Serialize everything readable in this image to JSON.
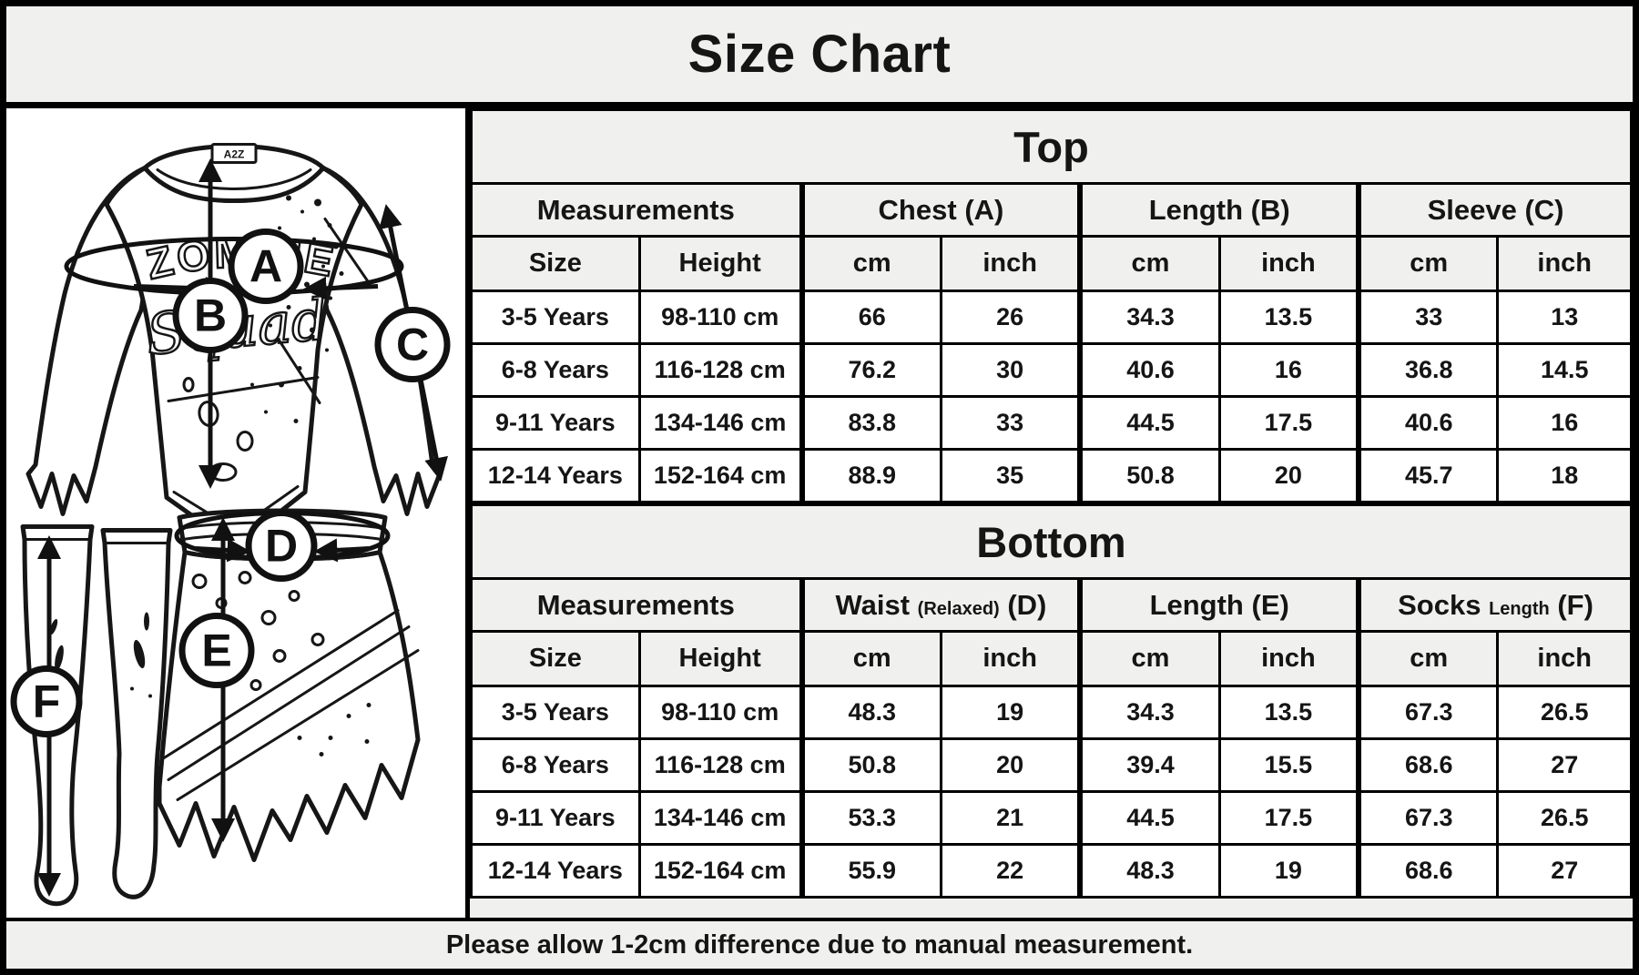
{
  "title": "Size Chart",
  "footer_note": "Please allow 1-2cm difference due to manual measurement.",
  "colors": {
    "page_bg": "#f0f0ee",
    "cell_bg": "#ffffff",
    "ink": "#111111"
  },
  "illustration": {
    "shirt_text_arc": "ZOMBIE",
    "shirt_text_script": "Squad",
    "collar_tag": "A2Z",
    "markers": {
      "chest": "A",
      "top_length": "B",
      "sleeve": "C",
      "waist": "D",
      "skirt_length": "E",
      "socks_length": "F"
    }
  },
  "tables": [
    {
      "section": "Top",
      "groups": [
        {
          "main": "Measurements",
          "small": "",
          "suffix": ""
        },
        {
          "main": "Chest",
          "small": "",
          "suffix": "(A)"
        },
        {
          "main": "Length",
          "small": "",
          "suffix": "(B)"
        },
        {
          "main": "Sleeve",
          "small": "",
          "suffix": "(C)"
        }
      ],
      "sub_headers": [
        "Size",
        "Height",
        "cm",
        "inch",
        "cm",
        "inch",
        "cm",
        "inch"
      ],
      "rows": [
        [
          "3-5 Years",
          "98-110 cm",
          "66",
          "26",
          "34.3",
          "13.5",
          "33",
          "13"
        ],
        [
          "6-8 Years",
          "116-128 cm",
          "76.2",
          "30",
          "40.6",
          "16",
          "36.8",
          "14.5"
        ],
        [
          "9-11 Years",
          "134-146 cm",
          "83.8",
          "33",
          "44.5",
          "17.5",
          "40.6",
          "16"
        ],
        [
          "12-14 Years",
          "152-164 cm",
          "88.9",
          "35",
          "50.8",
          "20",
          "45.7",
          "18"
        ]
      ]
    },
    {
      "section": "Bottom",
      "groups": [
        {
          "main": "Measurements",
          "small": "",
          "suffix": ""
        },
        {
          "main": "Waist",
          "small": "(Relaxed)",
          "suffix": "(D)"
        },
        {
          "main": "Length",
          "small": "",
          "suffix": "(E)"
        },
        {
          "main": "Socks",
          "small": "Length",
          "suffix": "(F)"
        }
      ],
      "sub_headers": [
        "Size",
        "Height",
        "cm",
        "inch",
        "cm",
        "inch",
        "cm",
        "inch"
      ],
      "rows": [
        [
          "3-5 Years",
          "98-110 cm",
          "48.3",
          "19",
          "34.3",
          "13.5",
          "67.3",
          "26.5"
        ],
        [
          "6-8 Years",
          "116-128 cm",
          "50.8",
          "20",
          "39.4",
          "15.5",
          "68.6",
          "27"
        ],
        [
          "9-11 Years",
          "134-146 cm",
          "53.3",
          "21",
          "44.5",
          "17.5",
          "67.3",
          "26.5"
        ],
        [
          "12-14 Years",
          "152-164 cm",
          "55.9",
          "22",
          "48.3",
          "19",
          "68.6",
          "27"
        ]
      ]
    }
  ]
}
